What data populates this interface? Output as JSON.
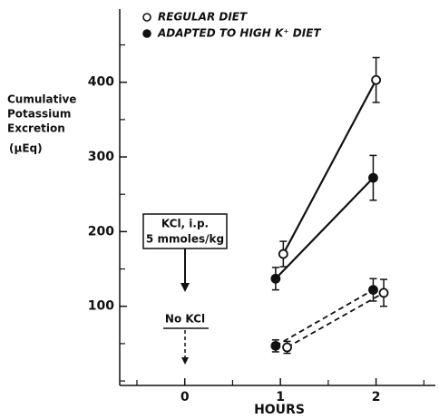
{
  "chart_data": {
    "type": "line",
    "y_label_lines": [
      "Cumulative",
      "Potassium",
      "Excretion",
      "(µEq)"
    ],
    "x_label": "HOURS",
    "annotations": {
      "kcl_lines": [
        "KCl, i.p.",
        "5 mmoles/kg"
      ],
      "no_kcl": "No KCl"
    },
    "xlim": [
      -0.68,
      2.62
    ],
    "xticks": [
      0,
      1,
      2
    ],
    "xticks_minor": [
      -0.5,
      0.5,
      1.5,
      2.5
    ],
    "ylim": [
      -6,
      498
    ],
    "yticks": [
      100,
      200,
      300,
      400
    ],
    "yticks_minor": [
      0,
      50,
      150,
      250,
      350,
      450
    ],
    "series": [
      {
        "name": "REGULAR DIET",
        "marker": "open",
        "x": [
          1.03,
          2.0
        ],
        "values": [
          170,
          403
        ],
        "errors": [
          17,
          30
        ],
        "x_no_kcl": [
          1.07,
          2.08
        ],
        "values_no_kcl": [
          45,
          118
        ],
        "errors_no_kcl": [
          8,
          18
        ]
      },
      {
        "name": "ADAPTED TO HIGH K⁺ DIET",
        "marker": "filled",
        "x": [
          0.95,
          1.97
        ],
        "values": [
          137,
          272
        ],
        "errors": [
          15,
          30
        ],
        "x_no_kcl": [
          0.95,
          1.97
        ],
        "values_no_kcl": [
          47,
          122
        ],
        "errors_no_kcl": [
          8,
          15
        ]
      }
    ]
  }
}
